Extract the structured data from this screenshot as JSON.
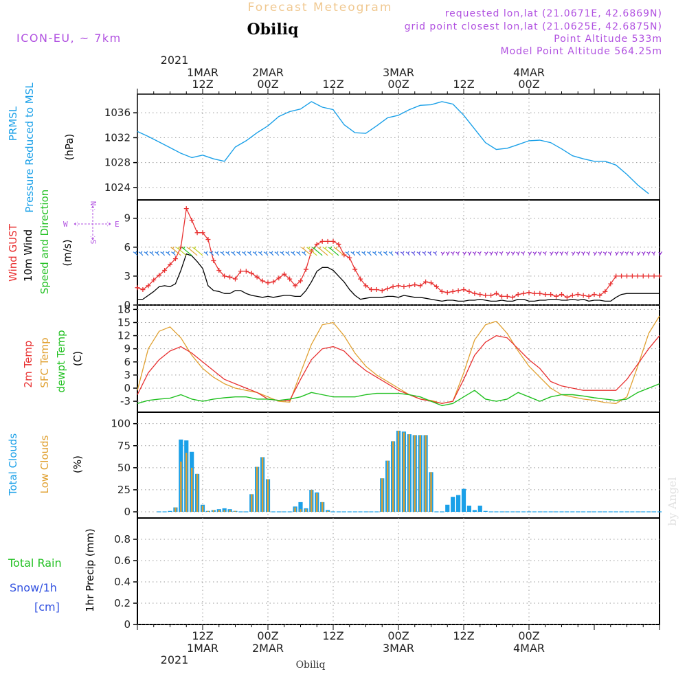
{
  "header": {
    "title": "Forecast Meteogram",
    "station": "Obiliq",
    "model": "ICON-EU, ~ 7km",
    "requested": "requested lon,lat (21.0671E, 42.6869N)",
    "gridpoint": "grid point closest lon,lat (21.0625E, 42.6875N)",
    "point_alt": "Point Altitude 533m",
    "model_alt": "Model Point Altitude 564.25m",
    "watermark": "by Angel",
    "bottom_station": "Obiliq"
  },
  "colors": {
    "pressure": "#1aa0e8",
    "gust": "#e83030",
    "wind": "#000000",
    "arrows_green": "#20c020",
    "temp": "#e83030",
    "sfc": "#e0a030",
    "dewpt": "#20c020",
    "total_cloud": "#1aa0e8",
    "low_cloud": "#e0a030",
    "purple": "#b050e0",
    "rain": "#20c020",
    "snow": "#3050e0"
  },
  "top_axis": {
    "year": "2021",
    "labels": [
      {
        "x": 12,
        "l1": "1MAR",
        "l2": "12Z"
      },
      {
        "x": 24,
        "l1": "2MAR",
        "l2": "00Z"
      },
      {
        "x": 36,
        "l1": "",
        "l2": "12Z"
      },
      {
        "x": 48,
        "l1": "3MAR",
        "l2": "00Z"
      },
      {
        "x": 60,
        "l1": "",
        "l2": "12Z"
      },
      {
        "x": 72,
        "l1": "4MAR",
        "l2": "00Z"
      }
    ]
  },
  "bottom_axis": {
    "year": "2021",
    "labels": [
      {
        "x": 12,
        "l1": "12Z",
        "l2": "1MAR"
      },
      {
        "x": 24,
        "l1": "00Z",
        "l2": "2MAR"
      },
      {
        "x": 36,
        "l1": "12Z",
        "l2": ""
      },
      {
        "x": 48,
        "l1": "00Z",
        "l2": "3MAR"
      },
      {
        "x": 60,
        "l1": "12Z",
        "l2": ""
      },
      {
        "x": 72,
        "l1": "00Z",
        "l2": "4MAR"
      }
    ]
  },
  "panel_labels": {
    "p1": [
      {
        "t": "PRMSL",
        "c": "pressure"
      },
      {
        "t": "Pressure Reduced to MSL",
        "c": "pressure"
      },
      {
        "t": "(hPa)",
        "c": "wind"
      }
    ],
    "p2": [
      {
        "t": "Wind GUST",
        "c": "gust"
      },
      {
        "t": "10m Wind",
        "c": "wind"
      },
      {
        "t": "Speed and Direction",
        "c": "arrows_green"
      },
      {
        "t": "(m/s)",
        "c": "wind"
      }
    ],
    "compass": {
      "n": "N",
      "s": "S",
      "w": "W",
      "e": "E"
    },
    "p3": [
      {
        "t": "2m Temp",
        "c": "temp"
      },
      {
        "t": "SFC Temp",
        "c": "sfc"
      },
      {
        "t": "dewpt Temp",
        "c": "dewpt"
      },
      {
        "t": "(C)",
        "c": "wind"
      }
    ],
    "p4": [
      {
        "t": "Total Clouds",
        "c": "total_cloud"
      },
      {
        "t": "Low Clouds",
        "c": "low_cloud"
      },
      {
        "t": "(%)",
        "c": "wind"
      }
    ],
    "p5_left": [
      {
        "t": "Total  Rain",
        "c": "rain"
      },
      {
        "t": "Snow/1h",
        "c": "snow"
      },
      {
        "t": "[cm]",
        "c": "snow"
      }
    ],
    "p5_axis": "1hr Precip (mm)"
  },
  "chart_data": [
    {
      "type": "line",
      "title": "PRMSL Pressure Reduced to MSL",
      "ylabel": "(hPa)",
      "ylim": [
        1022,
        1039
      ],
      "yticks": [
        1024,
        1028,
        1032,
        1036
      ],
      "x_hours": [
        0,
        2,
        4,
        6,
        8,
        10,
        12,
        14,
        16,
        18,
        20,
        22,
        24,
        26,
        28,
        30,
        32,
        34,
        36,
        38,
        40,
        42,
        44,
        46,
        48,
        50,
        52,
        54,
        56,
        58,
        60,
        62,
        64,
        66,
        68,
        70,
        72,
        74,
        76,
        78,
        80,
        82,
        84,
        86,
        88,
        90,
        92,
        94
      ],
      "values": [
        1033,
        1032.2,
        1031.3,
        1030.4,
        1029.5,
        1028.8,
        1029.2,
        1028.6,
        1028.2,
        1030.5,
        1031.5,
        1032.8,
        1033.9,
        1035.4,
        1036.2,
        1036.6,
        1037.8,
        1036.9,
        1036.5,
        1034.1,
        1032.8,
        1032.7,
        1033.9,
        1035.2,
        1035.6,
        1036.5,
        1037.2,
        1037.3,
        1037.8,
        1037.4,
        1035.6,
        1033.4,
        1031.2,
        1030.1,
        1030.3,
        1030.9,
        1031.5,
        1031.6,
        1031.2,
        1030.2,
        1029.1,
        1028.6,
        1028.2,
        1028.2,
        1027.6,
        1026.1,
        1024.4,
        1023.0
      ]
    },
    {
      "type": "line",
      "title": "Wind GUST / 10m Wind Speed and Direction",
      "ylabel": "(m/s)",
      "ylim": [
        0,
        10.9
      ],
      "yticks": [
        0,
        3,
        6,
        9
      ],
      "x_hours": [
        0,
        1,
        2,
        3,
        4,
        5,
        6,
        7,
        8,
        9,
        10,
        11,
        12,
        13,
        14,
        15,
        16,
        17,
        18,
        19,
        20,
        21,
        22,
        23,
        24,
        25,
        26,
        27,
        28,
        29,
        30,
        31,
        32,
        33,
        34,
        35,
        36,
        37,
        38,
        39,
        40,
        41,
        42,
        43,
        44,
        45,
        46,
        47,
        48,
        49,
        50,
        51,
        52,
        53,
        54,
        55,
        56,
        57,
        58,
        59,
        60,
        61,
        62,
        63,
        64,
        65,
        66,
        67,
        68,
        69,
        70,
        71,
        72,
        73,
        74,
        75,
        76,
        77,
        78,
        79,
        80,
        81,
        82,
        83,
        84,
        85,
        86,
        87,
        88,
        89,
        90,
        91,
        92,
        93,
        94,
        95,
        96
      ],
      "series": [
        {
          "name": "Wind GUST",
          "values": [
            1.8,
            1.6,
            2.0,
            2.6,
            3.1,
            3.6,
            4.2,
            4.8,
            6.0,
            10.0,
            8.8,
            7.5,
            7.5,
            6.8,
            4.6,
            3.6,
            3.0,
            2.9,
            2.7,
            3.5,
            3.5,
            3.3,
            2.9,
            2.5,
            2.3,
            2.4,
            2.8,
            3.2,
            2.7,
            2.0,
            2.5,
            3.7,
            5.6,
            6.3,
            6.6,
            6.6,
            6.6,
            6.3,
            5.2,
            4.9,
            3.7,
            2.7,
            2.0,
            1.6,
            1.6,
            1.5,
            1.7,
            1.9,
            2.0,
            1.9,
            2.0,
            2.1,
            2.0,
            2.4,
            2.3,
            1.9,
            1.4,
            1.3,
            1.4,
            1.5,
            1.6,
            1.4,
            1.2,
            1.1,
            1.0,
            1.0,
            1.2,
            0.9,
            0.9,
            0.8,
            1.1,
            1.2,
            1.3,
            1.2,
            1.2,
            1.1,
            1.1,
            0.9,
            1.1,
            0.8,
            1.0,
            1.1,
            1.0,
            0.9,
            1.1,
            1.0,
            1.4,
            2.2,
            3.0,
            3.0,
            3.0,
            3.0,
            3.0,
            3.0,
            3.0,
            3.0,
            3.0
          ]
        },
        {
          "name": "10m Wind",
          "values": [
            0.6,
            0.6,
            1.0,
            1.4,
            1.9,
            2.0,
            1.9,
            2.2,
            3.6,
            5.3,
            5.1,
            4.5,
            3.8,
            2.0,
            1.5,
            1.4,
            1.2,
            1.2,
            1.5,
            1.5,
            1.2,
            1.0,
            0.9,
            0.8,
            0.9,
            0.8,
            0.9,
            1.0,
            1.0,
            0.9,
            0.9,
            1.5,
            2.4,
            3.5,
            3.9,
            3.9,
            3.6,
            3.0,
            2.4,
            1.6,
            1.0,
            0.6,
            0.7,
            0.8,
            0.8,
            0.8,
            0.9,
            0.9,
            0.8,
            1.0,
            0.9,
            0.8,
            0.8,
            0.7,
            0.6,
            0.5,
            0.4,
            0.5,
            0.5,
            0.4,
            0.4,
            0.5,
            0.5,
            0.6,
            0.5,
            0.4,
            0.4,
            0.5,
            0.4,
            0.4,
            0.6,
            0.6,
            0.4,
            0.4,
            0.5,
            0.5,
            0.6,
            0.6,
            0.5,
            0.5,
            0.6,
            0.5,
            0.6,
            0.4,
            0.5,
            0.5,
            0.4,
            0.4,
            0.8,
            1.1,
            1.2,
            1.2,
            1.2,
            1.2,
            1.2,
            1.2,
            1.2
          ]
        }
      ],
      "arrow_level": 5.0
    },
    {
      "type": "line",
      "title": "2m Temp / SFC Temp / dewpt Temp",
      "ylabel": "(C)",
      "ylim": [
        -5.5,
        19
      ],
      "yticks": [
        -3,
        0,
        3,
        6,
        9,
        12,
        15,
        18
      ],
      "x_hours": [
        0,
        2,
        4,
        6,
        8,
        10,
        12,
        14,
        16,
        18,
        20,
        22,
        24,
        26,
        28,
        30,
        32,
        34,
        36,
        38,
        40,
        42,
        44,
        46,
        48,
        50,
        52,
        54,
        56,
        58,
        60,
        62,
        64,
        66,
        68,
        70,
        72,
        74,
        76,
        78,
        80,
        82,
        84,
        86,
        88,
        90,
        92,
        94,
        96
      ],
      "series": [
        {
          "name": "2m Temp",
          "values": [
            -1.5,
            3.5,
            6.5,
            8.5,
            9.5,
            8.0,
            6.0,
            4.0,
            2.0,
            1.0,
            0.0,
            -1.0,
            -2.5,
            -2.8,
            -2.8,
            2.0,
            6.5,
            9.0,
            9.5,
            8.5,
            6.0,
            4.0,
            2.5,
            1.0,
            -0.5,
            -1.5,
            -2.5,
            -3.0,
            -3.5,
            -3.0,
            2.0,
            7.5,
            10.5,
            12.0,
            11.5,
            9.0,
            6.5,
            4.5,
            1.5,
            0.5,
            0.0,
            -0.5,
            -0.5,
            -0.5,
            -0.5,
            2.0,
            5.5,
            9.0,
            12.0
          ]
        },
        {
          "name": "SFC Temp",
          "values": [
            -0.5,
            9.0,
            13.0,
            14.0,
            11.5,
            7.5,
            4.5,
            2.5,
            1.0,
            0.0,
            -0.5,
            -1.0,
            -2.0,
            -3.0,
            -3.2,
            3.5,
            10.0,
            14.5,
            15.0,
            12.0,
            8.0,
            5.0,
            3.0,
            1.5,
            0.0,
            -1.5,
            -2.5,
            -2.8,
            -3.5,
            -3.0,
            3.5,
            11.0,
            14.5,
            15.3,
            12.5,
            8.5,
            5.0,
            2.5,
            0.0,
            -1.5,
            -2.0,
            -2.5,
            -2.8,
            -3.3,
            -3.5,
            -2.0,
            5.0,
            12.5,
            16.5
          ]
        },
        {
          "name": "dewpt Temp",
          "values": [
            -3.5,
            -2.8,
            -2.5,
            -2.3,
            -1.5,
            -2.5,
            -3.0,
            -2.5,
            -2.2,
            -2.0,
            -2.0,
            -2.5,
            -2.5,
            -2.8,
            -2.5,
            -2.0,
            -1.0,
            -1.5,
            -2.0,
            -2.0,
            -2.0,
            -1.5,
            -1.2,
            -1.2,
            -1.2,
            -1.5,
            -2.0,
            -3.0,
            -4.0,
            -3.5,
            -2.0,
            -0.5,
            -2.5,
            -3.0,
            -2.5,
            -1.0,
            -2.0,
            -3.0,
            -2.0,
            -1.5,
            -1.5,
            -1.8,
            -2.2,
            -2.5,
            -2.8,
            -2.5,
            -1.0,
            0.0,
            1.0
          ]
        }
      ]
    },
    {
      "type": "bar",
      "title": "Total Clouds / Low Clouds",
      "ylabel": "(%)",
      "ylim": [
        -7,
        113
      ],
      "yticks": [
        0,
        25,
        50,
        75,
        100
      ],
      "x_hours": [
        4,
        5,
        6,
        7,
        8,
        9,
        10,
        11,
        12,
        13,
        14,
        15,
        16,
        17,
        18,
        19,
        20,
        21,
        22,
        23,
        24,
        25,
        26,
        27,
        28,
        29,
        30,
        31,
        32,
        33,
        34,
        35,
        36,
        37,
        38,
        39,
        40,
        41,
        42,
        43,
        44,
        45,
        46,
        47,
        48,
        49,
        50,
        51,
        52,
        53,
        54,
        55,
        56,
        57,
        58,
        59,
        60,
        61,
        62,
        63,
        64,
        65,
        66,
        67,
        68,
        69,
        70,
        71,
        72,
        73,
        74,
        75,
        76,
        77,
        78,
        79,
        80,
        81,
        82,
        83,
        84,
        85,
        86,
        87,
        88,
        89,
        90,
        91,
        92,
        93,
        94,
        95,
        96
      ],
      "series": [
        {
          "name": "Total Clouds",
          "values": [
            0,
            0,
            1,
            5,
            82,
            81,
            68,
            43,
            8,
            1,
            2,
            3,
            4,
            3,
            1,
            0,
            0,
            20,
            51,
            62,
            37,
            0,
            0,
            0,
            0,
            6,
            11,
            4,
            25,
            22,
            11,
            2,
            0,
            0,
            0,
            0,
            0,
            0,
            0,
            0,
            0,
            38,
            58,
            80,
            92,
            91,
            88,
            87,
            87,
            87,
            45,
            0,
            0,
            8,
            17,
            19,
            26,
            7,
            2,
            7,
            1,
            0,
            0,
            0,
            0,
            0,
            0,
            0,
            0,
            0,
            0,
            0,
            0,
            0,
            0,
            0,
            0,
            0,
            0,
            0,
            0,
            0,
            0,
            0,
            0,
            0,
            0,
            0,
            0,
            0,
            0,
            0
          ]
        },
        {
          "name": "Low Clouds",
          "values": [
            0,
            0,
            0,
            5,
            57,
            67,
            50,
            43,
            7,
            1,
            2,
            2,
            2,
            2,
            1,
            0,
            0,
            20,
            51,
            62,
            37,
            0,
            0,
            0,
            0,
            5,
            3,
            3,
            25,
            21,
            11,
            1,
            0,
            0,
            0,
            0,
            0,
            0,
            0,
            0,
            0,
            38,
            58,
            80,
            92,
            90,
            88,
            87,
            87,
            87,
            45,
            0,
            0,
            0,
            0,
            0,
            0,
            0,
            0,
            0,
            0,
            0,
            0,
            0,
            0,
            0,
            0,
            0,
            0,
            0,
            0,
            0,
            0,
            0,
            0,
            0,
            0,
            0,
            0,
            0,
            0,
            0,
            0,
            0,
            0,
            0,
            0,
            0,
            0,
            0,
            0,
            0
          ]
        }
      ]
    },
    {
      "type": "bar",
      "title": "1hr Precip (mm)",
      "ylabel": "1hr Precip (mm)",
      "ylim": [
        0,
        1.0
      ],
      "yticks": [
        0,
        0.2,
        0.4,
        0.6,
        0.8
      ],
      "series": [
        {
          "name": "Total Rain",
          "values": []
        },
        {
          "name": "Snow/1h",
          "values": []
        }
      ]
    }
  ]
}
